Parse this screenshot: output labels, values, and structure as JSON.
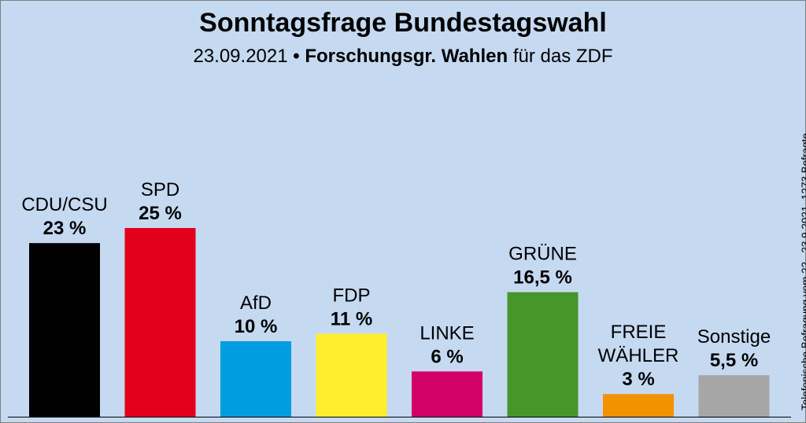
{
  "chart_data": {
    "type": "bar",
    "title": "Sonntagsfrage Bundestagswahl",
    "subtitle_date": "23.09.2021",
    "subtitle_separator": "•",
    "subtitle_institute": "Forschungsgr. Wahlen",
    "subtitle_client": "für das ZDF",
    "side_note": "Telefonische Befragung vom 22.–23.9.2021, 1273 Befragte",
    "ylim": [
      0,
      25
    ],
    "grid": false,
    "legend": "none",
    "xlabel": "",
    "ylabel": "",
    "bars": [
      {
        "label_lines": [
          "CDU/CSU"
        ],
        "value": 23,
        "value_label": "23 %",
        "color": "#000000"
      },
      {
        "label_lines": [
          "SPD"
        ],
        "value": 25,
        "value_label": "25 %",
        "color": "#e3001b"
      },
      {
        "label_lines": [
          "AfD"
        ],
        "value": 10,
        "value_label": "10 %",
        "color": "#009ee0"
      },
      {
        "label_lines": [
          "FDP"
        ],
        "value": 11,
        "value_label": "11 %",
        "color": "#ffed2e"
      },
      {
        "label_lines": [
          "LINKE"
        ],
        "value": 6,
        "value_label": "6 %",
        "color": "#d20069"
      },
      {
        "label_lines": [
          "GRÜNE"
        ],
        "value": 16.5,
        "value_label": "16,5 %",
        "color": "#46962b"
      },
      {
        "label_lines": [
          "FREIE",
          "WÄHLER"
        ],
        "value": 3,
        "value_label": "3 %",
        "color": "#f39200"
      },
      {
        "label_lines": [
          "Sonstige"
        ],
        "value": 5.5,
        "value_label": "5,5 %",
        "color": "#a6a6a6"
      }
    ]
  }
}
